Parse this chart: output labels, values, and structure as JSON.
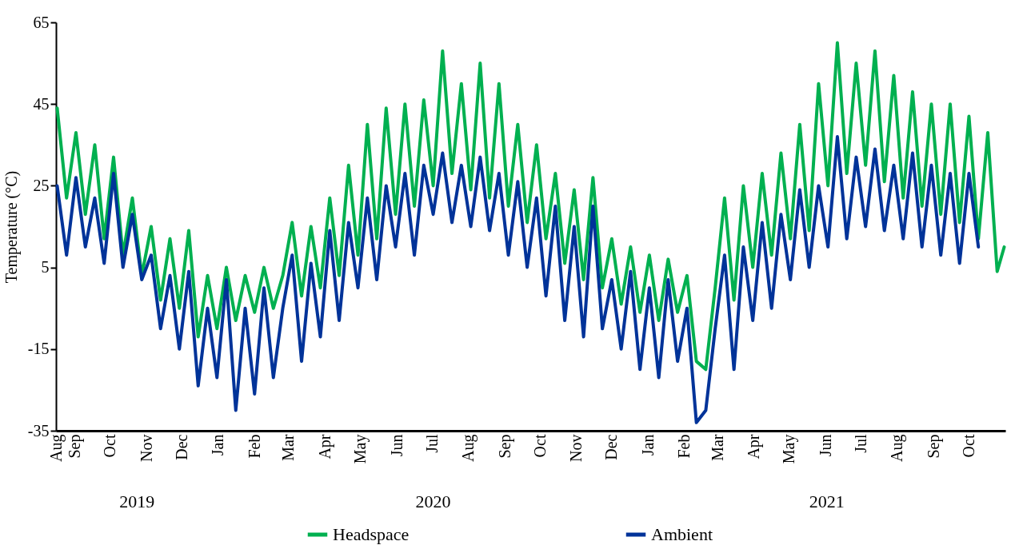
{
  "chart_data": {
    "type": "line",
    "ylabel": "Temperature (°C)",
    "x": [
      "2019-08-17",
      "2019-08-25",
      "2019-09-02",
      "2019-09-10",
      "2019-09-18",
      "2019-09-26",
      "2019-10-04",
      "2019-10-12",
      "2019-10-20",
      "2019-10-28",
      "2019-11-05",
      "2019-11-13",
      "2019-11-21",
      "2019-11-29",
      "2019-12-07",
      "2019-12-15",
      "2019-12-23",
      "2019-12-31",
      "2020-01-08",
      "2020-01-16",
      "2020-01-24",
      "2020-02-01",
      "2020-02-09",
      "2020-02-17",
      "2020-02-25",
      "2020-03-04",
      "2020-03-12",
      "2020-03-20",
      "2020-03-28",
      "2020-04-05",
      "2020-04-13",
      "2020-04-21",
      "2020-04-29",
      "2020-05-07",
      "2020-05-15",
      "2020-05-23",
      "2020-05-31",
      "2020-06-08",
      "2020-06-16",
      "2020-06-24",
      "2020-07-02",
      "2020-07-10",
      "2020-07-18",
      "2020-07-26",
      "2020-08-03",
      "2020-08-11",
      "2020-08-19",
      "2020-08-27",
      "2020-09-04",
      "2020-09-12",
      "2020-09-20",
      "2020-09-28",
      "2020-10-06",
      "2020-10-14",
      "2020-10-22",
      "2020-10-30",
      "2020-11-07",
      "2020-11-15",
      "2020-11-23",
      "2020-12-01",
      "2020-12-09",
      "2020-12-17",
      "2020-12-25",
      "2021-01-02",
      "2021-01-10",
      "2021-01-18",
      "2021-01-26",
      "2021-02-03",
      "2021-02-11",
      "2021-02-19",
      "2021-02-27",
      "2021-03-07",
      "2021-03-15",
      "2021-03-23",
      "2021-03-31",
      "2021-04-08",
      "2021-04-16",
      "2021-04-24",
      "2021-05-02",
      "2021-05-10",
      "2021-05-18",
      "2021-05-26",
      "2021-06-03",
      "2021-06-11",
      "2021-06-19",
      "2021-06-27",
      "2021-07-05",
      "2021-07-13",
      "2021-07-21",
      "2021-07-29",
      "2021-08-06",
      "2021-08-14",
      "2021-08-22",
      "2021-08-30",
      "2021-09-07",
      "2021-09-15",
      "2021-09-23",
      "2021-10-01",
      "2021-10-09",
      "2021-10-17",
      "2021-10-25",
      "2021-10-31"
    ],
    "series": [
      {
        "name": "Headspace",
        "color": "#00b050",
        "values": [
          44,
          22,
          38,
          18,
          35,
          12,
          32,
          8,
          22,
          3,
          15,
          -3,
          12,
          -5,
          14,
          -12,
          3,
          -10,
          5,
          -8,
          3,
          -6,
          5,
          -5,
          3,
          16,
          -2,
          15,
          0,
          22,
          3,
          30,
          8,
          40,
          12,
          44,
          18,
          45,
          20,
          46,
          25,
          58,
          28,
          50,
          24,
          55,
          22,
          50,
          20,
          40,
          16,
          35,
          12,
          28,
          6,
          24,
          2,
          27,
          0,
          12,
          -4,
          10,
          -6,
          8,
          -8,
          7,
          -6,
          3,
          -18,
          -20,
          0,
          22,
          -3,
          25,
          5,
          28,
          8,
          33,
          12,
          40,
          14,
          50,
          25,
          60,
          28,
          55,
          30,
          58,
          26,
          52,
          22,
          48,
          20,
          45,
          18,
          45,
          16,
          42,
          12,
          38,
          4,
          10
        ]
      },
      {
        "name": "Ambient",
        "color": "#003399",
        "values": [
          25,
          8,
          27,
          10,
          22,
          6,
          28,
          5,
          18,
          2,
          8,
          -10,
          3,
          -15,
          4,
          -24,
          -5,
          -22,
          2,
          -30,
          -5,
          -26,
          0,
          -22,
          -5,
          8,
          -18,
          6,
          -12,
          14,
          -8,
          16,
          0,
          22,
          2,
          25,
          10,
          28,
          8,
          30,
          18,
          33,
          16,
          30,
          15,
          32,
          14,
          28,
          8,
          26,
          5,
          22,
          -2,
          20,
          -8,
          15,
          -12,
          20,
          -10,
          2,
          -15,
          4,
          -20,
          0,
          -22,
          2,
          -18,
          -5,
          -33,
          -30,
          -10,
          8,
          -20,
          10,
          -8,
          16,
          -5,
          18,
          2,
          24,
          5,
          25,
          10,
          37,
          12,
          32,
          15,
          34,
          14,
          30,
          12,
          33,
          10,
          30,
          8,
          28,
          6,
          28,
          10,
          null,
          null,
          null
        ]
      }
    ],
    "xlim": [
      "2019-08-16",
      "2021-11-01"
    ],
    "xticks": [
      {
        "value": "2019-08-16",
        "label": "Aug"
      },
      {
        "value": "2019-09-01",
        "label": "Sep"
      },
      {
        "value": "2019-10-01",
        "label": "Oct"
      },
      {
        "value": "2019-11-01",
        "label": "Nov"
      },
      {
        "value": "2019-12-01",
        "label": "Dec"
      },
      {
        "value": "2020-01-01",
        "label": "Jan"
      },
      {
        "value": "2020-02-01",
        "label": "Feb"
      },
      {
        "value": "2020-03-01",
        "label": "Mar"
      },
      {
        "value": "2020-04-01",
        "label": "Apr"
      },
      {
        "value": "2020-05-01",
        "label": "May"
      },
      {
        "value": "2020-06-01",
        "label": "Jun"
      },
      {
        "value": "2020-07-01",
        "label": "Jul"
      },
      {
        "value": "2020-08-01",
        "label": "Aug"
      },
      {
        "value": "2020-09-01",
        "label": "Sep"
      },
      {
        "value": "2020-10-01",
        "label": "Oct"
      },
      {
        "value": "2020-11-01",
        "label": "Nov"
      },
      {
        "value": "2020-12-01",
        "label": "Dec"
      },
      {
        "value": "2021-01-01",
        "label": "Jan"
      },
      {
        "value": "2021-02-01",
        "label": "Feb"
      },
      {
        "value": "2021-03-01",
        "label": "Mar"
      },
      {
        "value": "2021-04-01",
        "label": "Apr"
      },
      {
        "value": "2021-05-01",
        "label": "May"
      },
      {
        "value": "2021-06-01",
        "label": "Jun"
      },
      {
        "value": "2021-07-01",
        "label": "Jul"
      },
      {
        "value": "2021-08-01",
        "label": "Aug"
      },
      {
        "value": "2021-09-01",
        "label": "Sep"
      },
      {
        "value": "2021-10-01",
        "label": "Oct"
      }
    ],
    "ylim": [
      -35,
      65
    ],
    "yticks": [
      -35,
      -15,
      5,
      25,
      45,
      65
    ],
    "annotations": [
      "2019",
      "2020",
      "2021"
    ],
    "legend": "bottom",
    "marker": "none",
    "line_style": "solid"
  }
}
